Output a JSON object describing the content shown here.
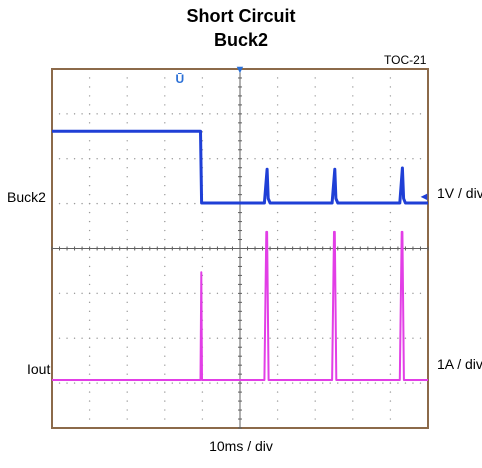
{
  "header": {
    "title_line1": "Short Circuit",
    "title_line2": "Buck2",
    "figure_id": "TOC-21"
  },
  "channels": {
    "ch1": {
      "name": "Buck2",
      "scale": "1V / div",
      "color": "#1f3fd6"
    },
    "ch2": {
      "name": "Iout",
      "scale": "1A / div",
      "color": "#e23ee6"
    }
  },
  "timebase": {
    "label": "10ms / div"
  },
  "colors": {
    "frame": "#8c6a4a",
    "grid_dots": "#9a9a9a",
    "center_line": "#606060",
    "marker": "#2a6fd6"
  },
  "chart_data": {
    "type": "line",
    "title": "Short Circuit Buck2",
    "x_divisions": 10,
    "y_divisions": 8,
    "grid": true,
    "x_unit": "ms",
    "x_per_div_value": 10,
    "xlim": [
      0,
      100
    ],
    "series": [
      {
        "name": "Buck2",
        "unit": "V",
        "x": [
          0,
          39.5,
          39.8,
          40,
          56.5,
          57.2,
          57.5,
          58,
          74.5,
          75.2,
          75.5,
          76,
          92.5,
          93.2,
          93.5,
          94,
          100
        ],
        "y": [
          1.6,
          1.6,
          0.0,
          0.0,
          0.0,
          0.75,
          0.1,
          0.0,
          0.0,
          0.75,
          0.1,
          0.0,
          0.0,
          0.78,
          0.1,
          0.0,
          0.0
        ]
      },
      {
        "name": "Iout",
        "unit": "A",
        "x": [
          0,
          39.5,
          39.7,
          39.9,
          56.5,
          57.0,
          57.2,
          57.6,
          74.5,
          75.0,
          75.2,
          75.6,
          92.5,
          93.0,
          93.2,
          93.6,
          100
        ],
        "y": [
          0.0,
          0.0,
          2.4,
          0.0,
          0.0,
          3.3,
          3.3,
          0.0,
          0.0,
          3.3,
          3.3,
          0.0,
          0.0,
          3.3,
          3.3,
          0.0,
          0.0
        ]
      }
    ]
  }
}
